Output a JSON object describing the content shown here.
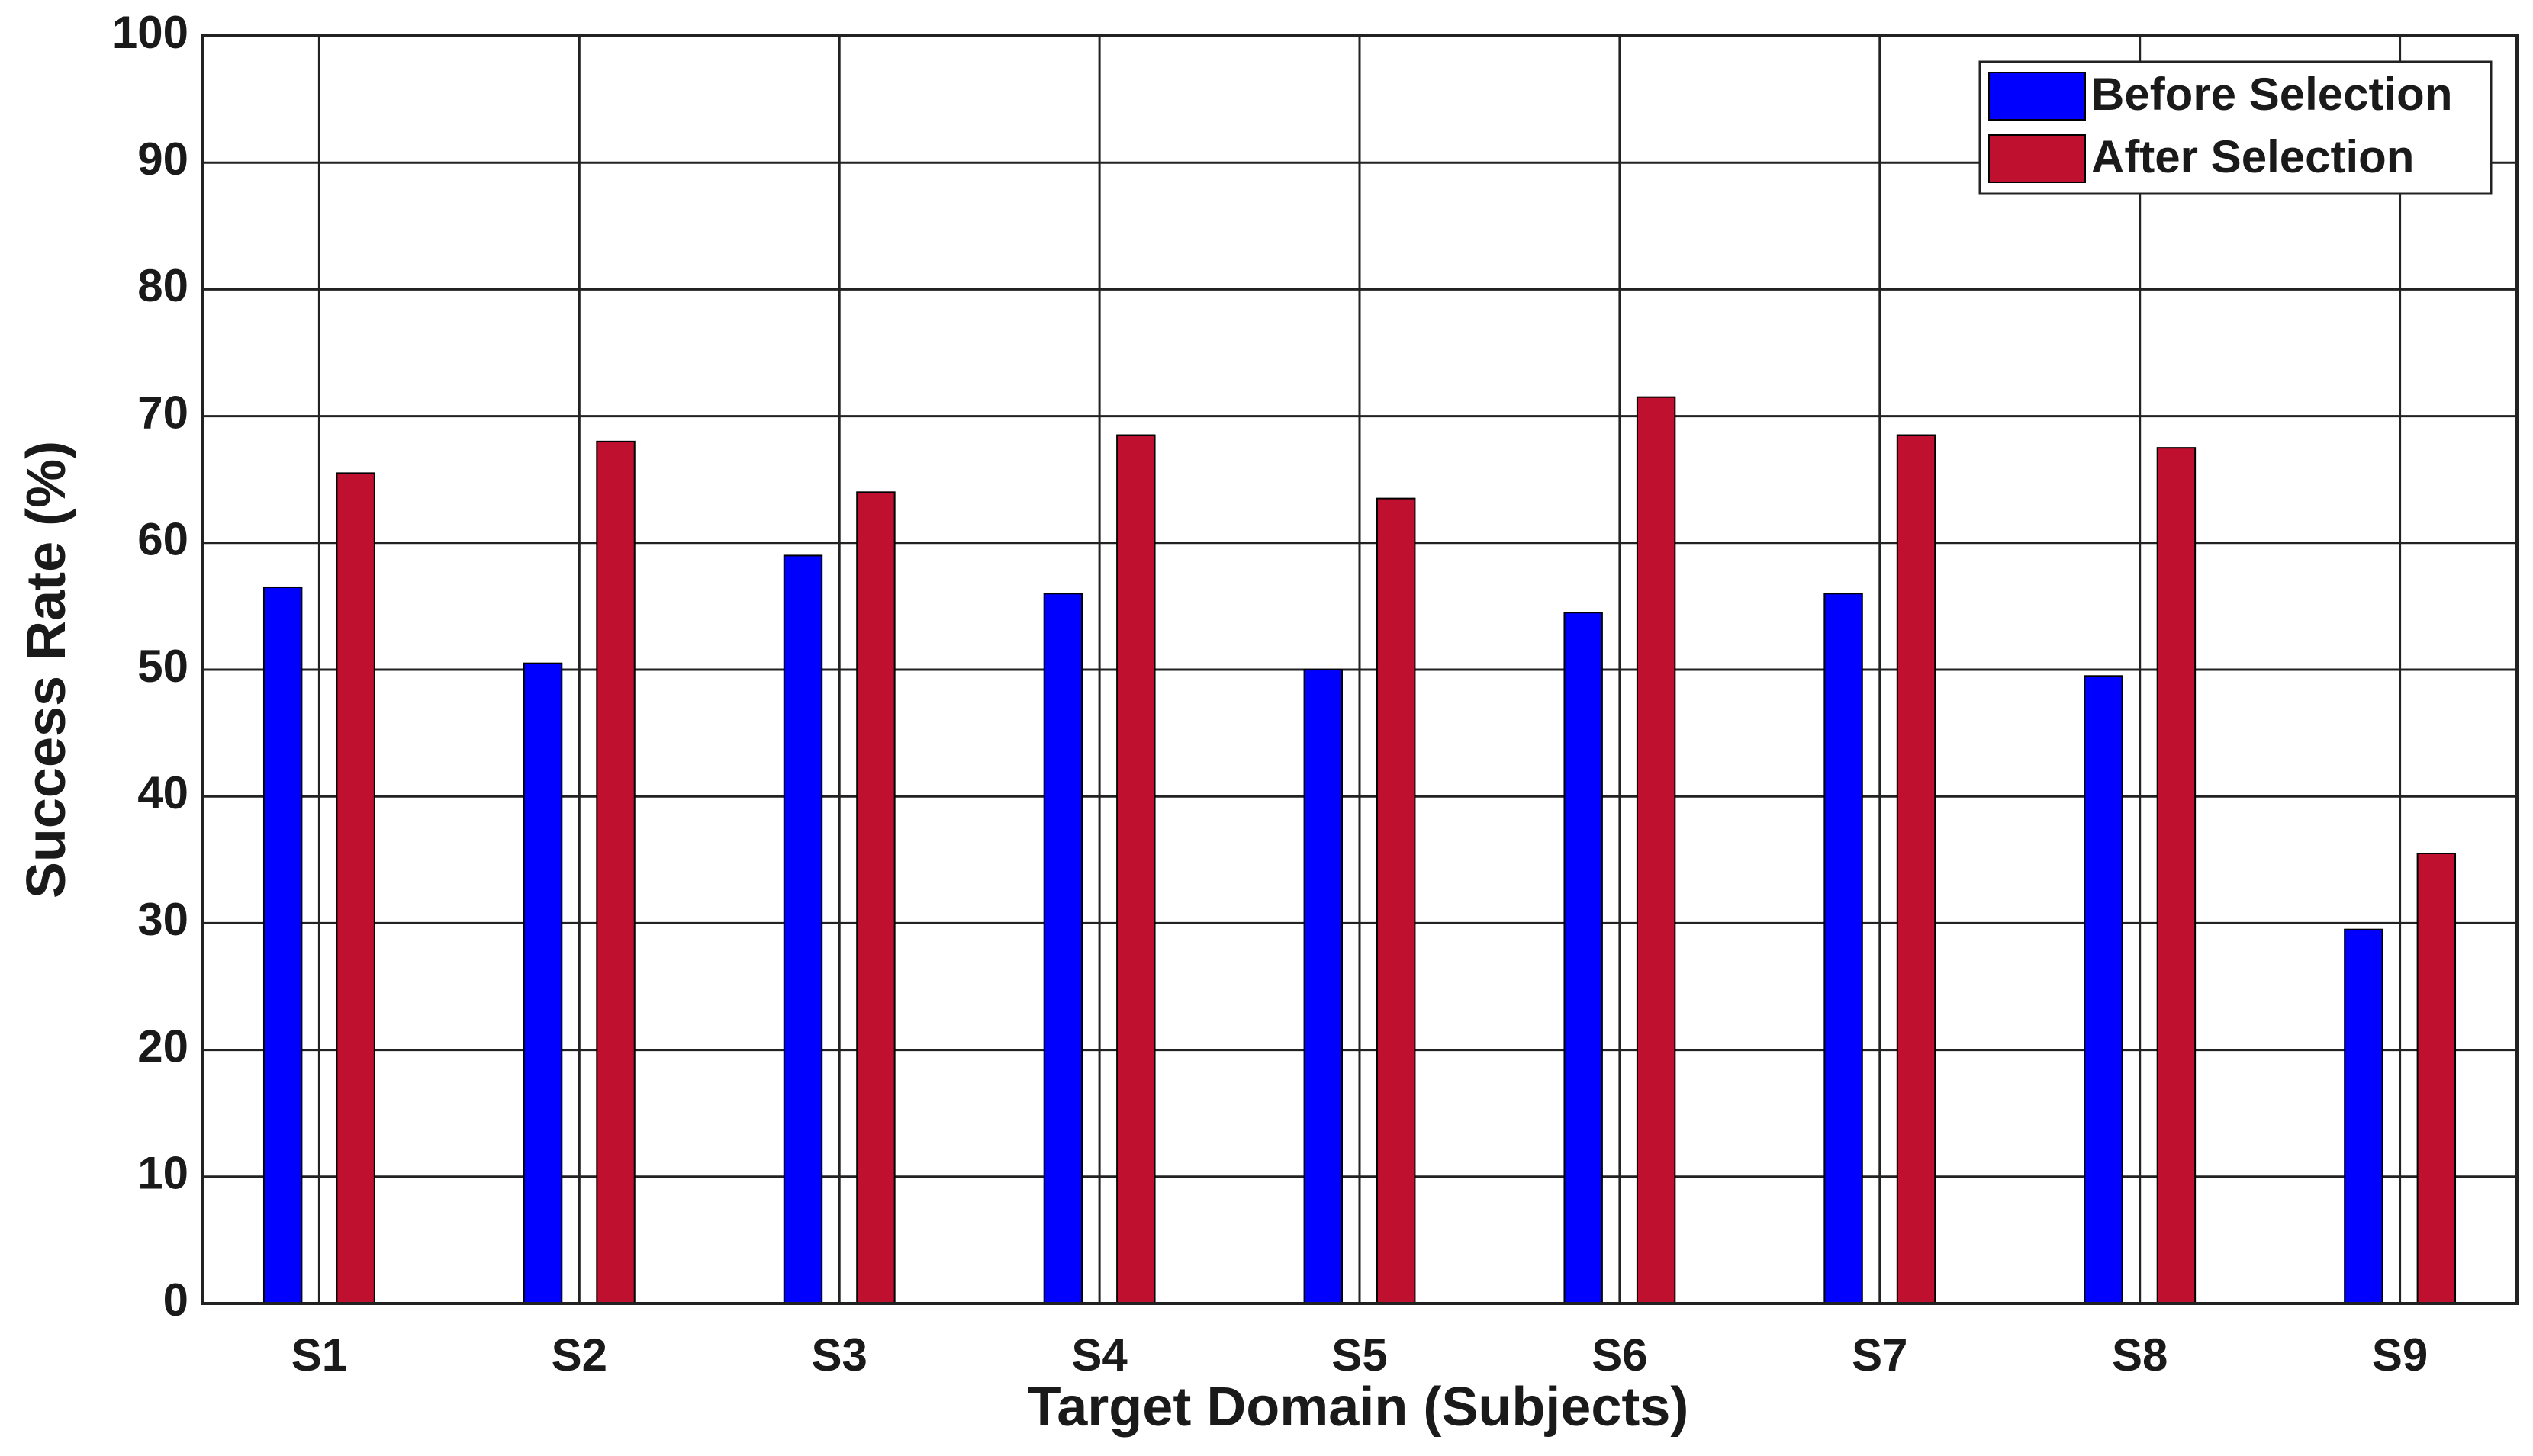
{
  "chart_data": {
    "type": "bar",
    "x_label": "Target Domain (Subjects)",
    "y_label": "Success Rate (%)",
    "categories": [
      "S1",
      "S2",
      "S3",
      "S4",
      "S5",
      "S6",
      "S7",
      "S8",
      "S9"
    ],
    "series": [
      {
        "name": "Before Selection",
        "color": "#0000ff",
        "values": [
          56.5,
          50.5,
          59,
          56,
          50,
          54.5,
          56,
          49.5,
          29.5
        ]
      },
      {
        "name": "After Selection",
        "color": "#c0102f",
        "values": [
          65.5,
          68,
          64,
          68.5,
          63.5,
          71.5,
          68.5,
          67.5,
          35.5
        ]
      }
    ],
    "ylim": [
      0,
      100
    ],
    "yticks": [
      0,
      10,
      20,
      30,
      40,
      50,
      60,
      70,
      80,
      90,
      100
    ],
    "grid": true,
    "legend": "top-right"
  }
}
